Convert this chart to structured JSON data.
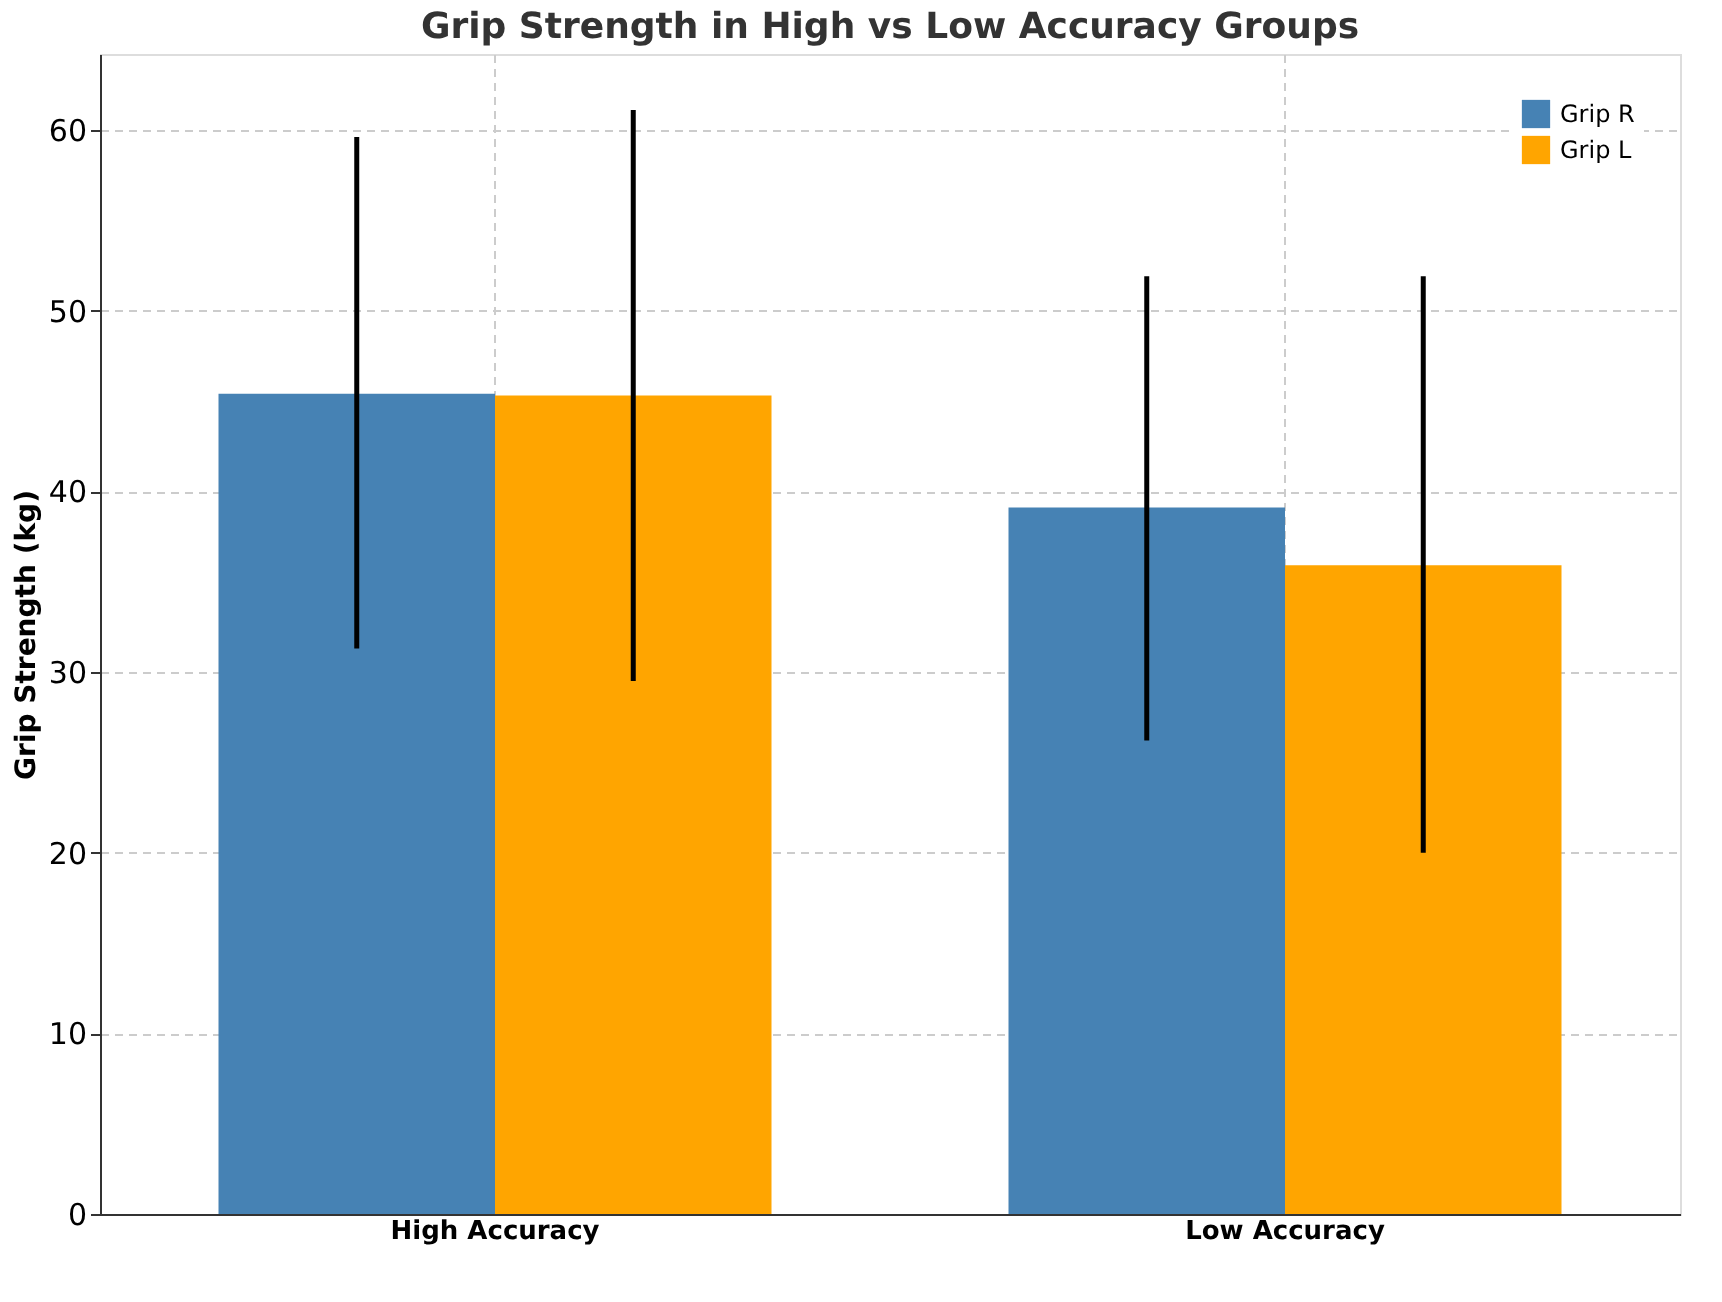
{
  "chart_data": {
    "type": "bar",
    "title": "Grip Strength in High vs Low Accuracy Groups",
    "ylabel": "Grip Strength (kg)",
    "categories": [
      "High Accuracy",
      "Low Accuracy"
    ],
    "series": [
      {
        "name": "Grip R",
        "color": "#4682b4",
        "values": [
          45.4,
          39.1
        ],
        "errors": [
          [
            31.3,
            59.6
          ],
          [
            26.2,
            51.9
          ]
        ]
      },
      {
        "name": "Grip L",
        "color": "#ffa500",
        "values": [
          45.3,
          35.9
        ],
        "errors": [
          [
            29.5,
            61.1
          ],
          [
            20.0,
            51.9
          ]
        ]
      }
    ],
    "ylim": [
      0,
      64.2
    ],
    "yticks": [
      0,
      10,
      20,
      30,
      40,
      50,
      60
    ],
    "grid": true,
    "legend": "top right"
  }
}
